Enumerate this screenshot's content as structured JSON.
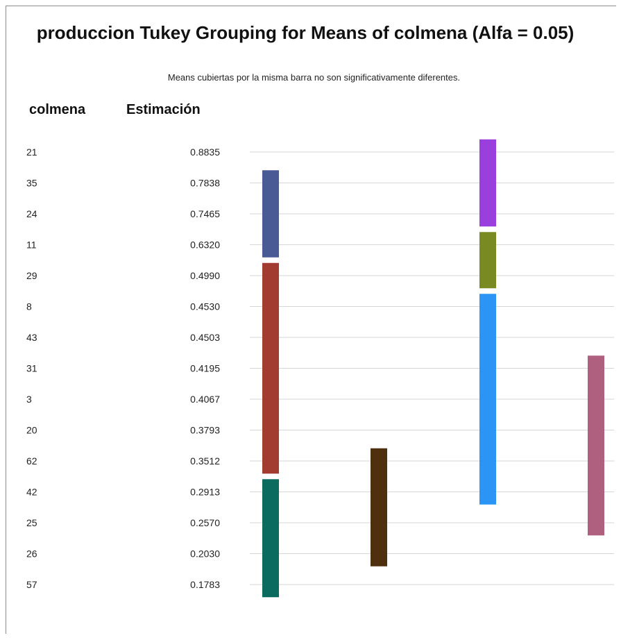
{
  "chart_data": {
    "type": "table",
    "title": "produccion Tukey Grouping for Means of colmena (Alfa = 0.05)",
    "subtitle": "Means cubiertas por la misma barra no son significativamente diferentes.",
    "columns": [
      "colmena",
      "Estimación"
    ],
    "rows": [
      {
        "colmena": "21",
        "estimacion": "0.8835"
      },
      {
        "colmena": "35",
        "estimacion": "0.7838"
      },
      {
        "colmena": "24",
        "estimacion": "0.7465"
      },
      {
        "colmena": "11",
        "estimacion": "0.6320"
      },
      {
        "colmena": "29",
        "estimacion": "0.4990"
      },
      {
        "colmena": "8",
        "estimacion": "0.4530"
      },
      {
        "colmena": "43",
        "estimacion": "0.4503"
      },
      {
        "colmena": "31",
        "estimacion": "0.4195"
      },
      {
        "colmena": "3",
        "estimacion": "0.4067"
      },
      {
        "colmena": "20",
        "estimacion": "0.3793"
      },
      {
        "colmena": "62",
        "estimacion": "0.3512"
      },
      {
        "colmena": "42",
        "estimacion": "0.2913"
      },
      {
        "colmena": "25",
        "estimacion": "0.2570"
      },
      {
        "colmena": "26",
        "estimacion": "0.2030"
      },
      {
        "colmena": "57",
        "estimacion": "0.1783"
      }
    ],
    "groups": [
      {
        "column": 1,
        "from_row": 1,
        "to_row": 3,
        "color": "#4a5a94"
      },
      {
        "column": 1,
        "from_row": 4,
        "to_row": 10,
        "color": "#a23b30"
      },
      {
        "column": 1,
        "from_row": 11,
        "to_row": 14,
        "color": "#0b6b5e"
      },
      {
        "column": 2,
        "from_row": 10,
        "to_row": 13,
        "color": "#4e2f0e"
      },
      {
        "column": 3,
        "from_row": 0,
        "to_row": 2,
        "color": "#9a3ede"
      },
      {
        "column": 3,
        "from_row": 3,
        "to_row": 4,
        "color": "#7a8a22"
      },
      {
        "column": 3,
        "from_row": 5,
        "to_row": 11,
        "color": "#2b95f5"
      },
      {
        "column": 4,
        "from_row": 7,
        "to_row": 12,
        "color": "#b0607f"
      }
    ],
    "gridlines": true
  }
}
